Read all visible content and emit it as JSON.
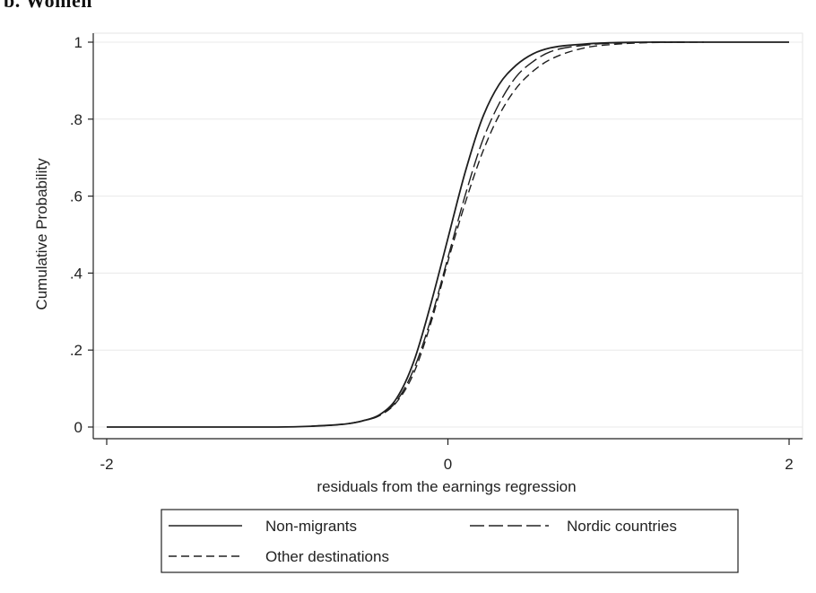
{
  "panel_title": "b. Women",
  "chart_data": {
    "type": "line",
    "xlabel": "residuals from the earnings regression",
    "ylabel": "Cumulative Probability",
    "xlim": [
      -2,
      2
    ],
    "ylim": [
      0,
      1
    ],
    "x_ticks": [
      -2,
      0,
      2
    ],
    "x_tick_labels": [
      "-2",
      "0",
      "2"
    ],
    "y_ticks": [
      0,
      0.2,
      0.4,
      0.6,
      0.8,
      1
    ],
    "y_tick_labels": [
      "0",
      ".2",
      ".4",
      ".6",
      ".8",
      "1"
    ],
    "grid": "horizontal",
    "legend_position": "bottom",
    "series": [
      {
        "name": "Non-migrants",
        "style": "solid",
        "x": [
          -2.0,
          -1.0,
          -0.8,
          -0.6,
          -0.5,
          -0.4,
          -0.3,
          -0.2,
          -0.1,
          0.0,
          0.1,
          0.2,
          0.3,
          0.4,
          0.5,
          0.6,
          0.8,
          1.0,
          1.2,
          2.0
        ],
        "y": [
          0.0,
          0.0,
          0.002,
          0.008,
          0.016,
          0.032,
          0.075,
          0.17,
          0.32,
          0.49,
          0.66,
          0.8,
          0.89,
          0.94,
          0.97,
          0.985,
          0.995,
          0.999,
          1.0,
          1.0
        ]
      },
      {
        "name": "Nordic countries",
        "style": "longdash",
        "x": [
          -0.8,
          -0.6,
          -0.5,
          -0.4,
          -0.3,
          -0.2,
          -0.1,
          0.0,
          0.1,
          0.2,
          0.3,
          0.4,
          0.5,
          0.6,
          0.8,
          1.0,
          1.2,
          1.4
        ],
        "y": [
          0.002,
          0.008,
          0.016,
          0.03,
          0.068,
          0.15,
          0.28,
          0.44,
          0.6,
          0.74,
          0.84,
          0.91,
          0.95,
          0.975,
          0.992,
          0.998,
          1.0,
          1.0
        ]
      },
      {
        "name": "Other destinations",
        "style": "shortdash",
        "x": [
          -0.8,
          -0.6,
          -0.5,
          -0.4,
          -0.3,
          -0.2,
          -0.1,
          0.0,
          0.1,
          0.2,
          0.3,
          0.4,
          0.5,
          0.6,
          0.8,
          1.0,
          1.2,
          1.5
        ],
        "y": [
          0.002,
          0.008,
          0.016,
          0.03,
          0.065,
          0.14,
          0.27,
          0.43,
          0.58,
          0.71,
          0.81,
          0.88,
          0.925,
          0.955,
          0.985,
          0.995,
          0.999,
          1.0
        ]
      }
    ]
  }
}
